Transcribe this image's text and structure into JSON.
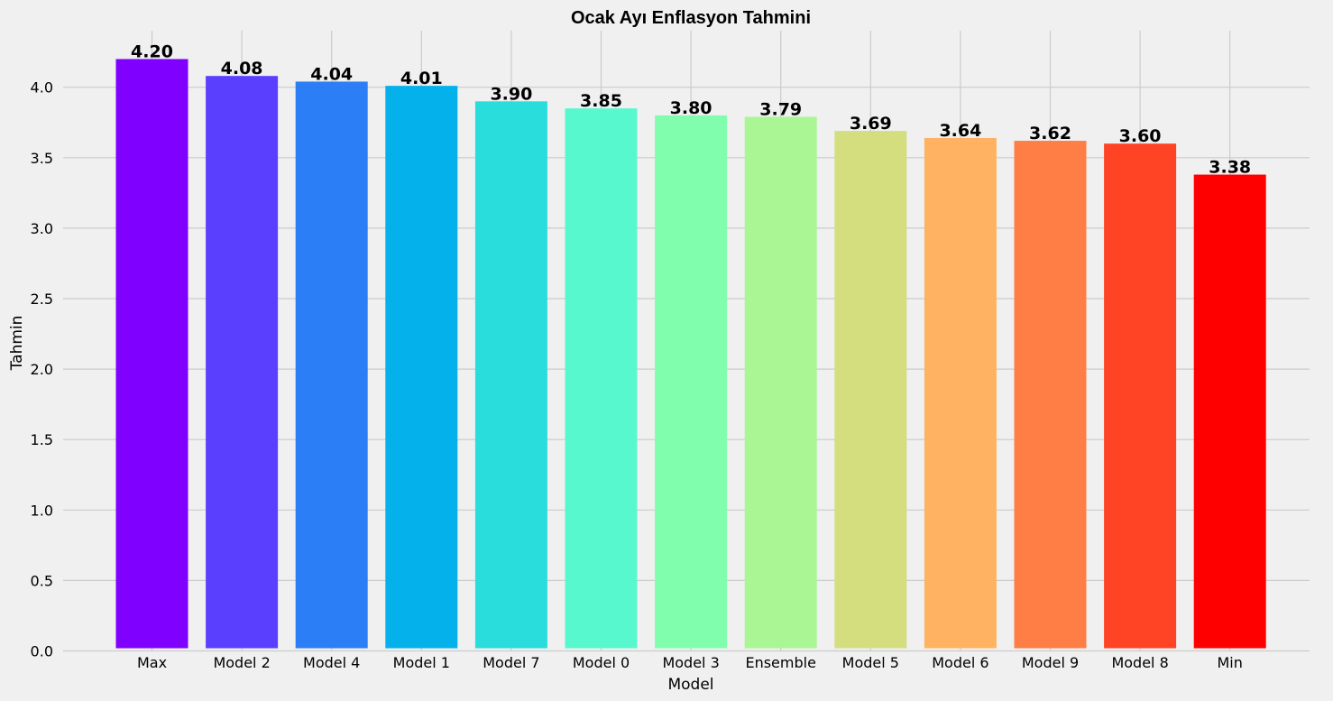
{
  "chart_data": {
    "type": "bar",
    "title": "Ocak Ayı Enflasyon Tahmini",
    "xlabel": "Model",
    "ylabel": "Tahmin",
    "ylim": [
      0,
      4.35
    ],
    "yticks": [
      "0.0",
      "0.5",
      "1.0",
      "1.5",
      "2.0",
      "2.5",
      "3.0",
      "3.5",
      "4.0"
    ],
    "grid": true,
    "categories": [
      "Max",
      "Model 2",
      "Model 4",
      "Model 1",
      "Model 7",
      "Model 0",
      "Model 3",
      "Ensemble",
      "Model 5",
      "Model 6",
      "Model 9",
      "Model 8",
      "Min"
    ],
    "values": [
      4.2,
      4.08,
      4.04,
      4.01,
      3.9,
      3.85,
      3.8,
      3.79,
      3.69,
      3.64,
      3.62,
      3.6,
      3.38
    ],
    "value_labels": [
      "4.20",
      "4.08",
      "4.04",
      "4.01",
      "3.90",
      "3.85",
      "3.80",
      "3.79",
      "3.69",
      "3.64",
      "3.62",
      "3.60",
      "3.38"
    ],
    "colors": [
      "#8000ff",
      "#5a40fe",
      "#2c7ef7",
      "#04b1eb",
      "#2adddd",
      "#58f8cf",
      "#80fead",
      "#aaf694",
      "#d4de7f",
      "#ffb262",
      "#ff7e45",
      "#ff4425",
      "#ff0000"
    ]
  }
}
